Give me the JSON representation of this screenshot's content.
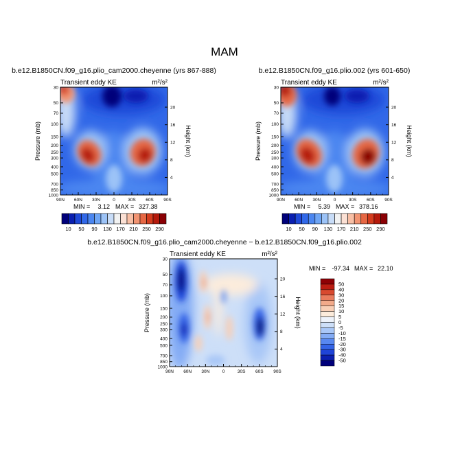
{
  "page_title": "MAM",
  "colors": {
    "ke_scale": [
      "#00007a",
      "#0a1fb0",
      "#1f49d8",
      "#3168e8",
      "#4b86f0",
      "#6ea5f5",
      "#9cc3f7",
      "#c8dcf7",
      "#f2f2f2",
      "#fbe0d4",
      "#f8bfa5",
      "#f29472",
      "#e66744",
      "#d43c1e",
      "#b51a0c",
      "#8a0004"
    ],
    "diff_scale": [
      "#00007a",
      "#0b1fb0",
      "#1f44d8",
      "#3464e6",
      "#5888f0",
      "#84acf5",
      "#a9c7f7",
      "#cddff8",
      "#edf2fa",
      "#fcecdc",
      "#f8cfb6",
      "#f2aa8a",
      "#e97c5e",
      "#d8492f",
      "#bb1c12",
      "#8e0005"
    ]
  },
  "chart_data": [
    {
      "type": "heatmap",
      "id": "p1",
      "title": "b.e12.B1850CN.f09_g16.plio_cam2000.cheyenne (yrs 867-888)",
      "left_label": "Transient eddy KE",
      "units": "m²/s²",
      "ylabel": "Pressure (mb)",
      "y2label": "Height (km)",
      "x_ticks": [
        "90N",
        "60N",
        "30N",
        "0",
        "30S",
        "60S",
        "90S"
      ],
      "y_ticks": [
        "30",
        "50",
        "70",
        "100",
        "150",
        "200",
        "250",
        "300",
        "400",
        "500",
        "700",
        "850",
        "1000"
      ],
      "y2_ticks": [
        "20",
        "16",
        "12",
        "8",
        "4"
      ],
      "min_label": "MIN =",
      "min_value": "3.12",
      "max_label": "MAX =",
      "max_value": "327.38",
      "colorbar_labels": [
        "10",
        "50",
        "90",
        "130",
        "170",
        "210",
        "250",
        "290"
      ]
    },
    {
      "type": "heatmap",
      "id": "p2",
      "title": "b.e12.B1850CN.f09_g16.plio.002 (yrs 601-650)",
      "left_label": "Transient eddy KE",
      "units": "m²/s²",
      "ylabel": "Pressure (mb)",
      "y2label": "Height (km)",
      "x_ticks": [
        "90N",
        "60N",
        "30N",
        "0",
        "30S",
        "60S",
        "90S"
      ],
      "y_ticks": [
        "30",
        "50",
        "70",
        "100",
        "150",
        "200",
        "250",
        "300",
        "400",
        "500",
        "700",
        "850",
        "1000"
      ],
      "y2_ticks": [
        "20",
        "16",
        "12",
        "8",
        "4"
      ],
      "min_label": "MIN =",
      "min_value": "5.39",
      "max_label": "MAX =",
      "max_value": "378.16",
      "colorbar_labels": [
        "10",
        "50",
        "90",
        "130",
        "170",
        "210",
        "250",
        "290"
      ]
    },
    {
      "type": "heatmap",
      "id": "p3",
      "title": "b.e12.B1850CN.f09_g16.plio_cam2000.cheyenne − b.e12.B1850CN.f09_g16.plio.002",
      "left_label": "Transient eddy KE",
      "units": "m²/s²",
      "ylabel": "Pressure (mb)",
      "y2label": "Height (km)",
      "x_ticks": [
        "90N",
        "60N",
        "30N",
        "0",
        "30S",
        "60S",
        "90S"
      ],
      "y_ticks": [
        "30",
        "50",
        "70",
        "100",
        "150",
        "200",
        "250",
        "300",
        "400",
        "500",
        "700",
        "850",
        "1000"
      ],
      "y2_ticks": [
        "20",
        "16",
        "12",
        "8",
        "4"
      ],
      "min_label": "MIN =",
      "min_value": "-97.34",
      "max_label": "MAX =",
      "max_value": "22.10",
      "colorbar_labels": [
        "50",
        "40",
        "30",
        "20",
        "15",
        "10",
        "5",
        "0",
        "-5",
        "-10",
        "-15",
        "-20",
        "-30",
        "-40",
        "-50"
      ]
    }
  ]
}
